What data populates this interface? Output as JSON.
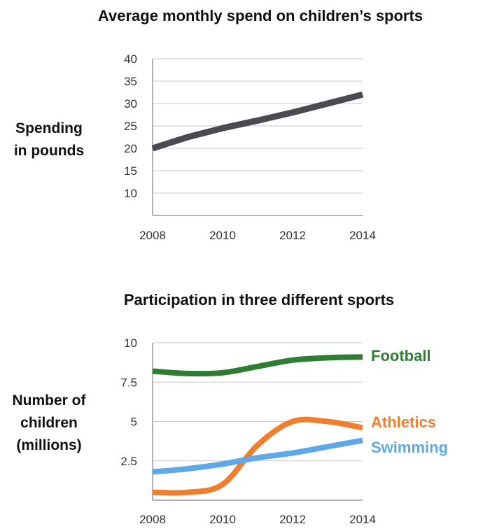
{
  "chart_data": [
    {
      "type": "line",
      "title": "Average monthly spend on children’s sports",
      "ylabel": [
        "Spending",
        "in pounds"
      ],
      "xlabel": "",
      "x": [
        2008,
        2009,
        2010,
        2011,
        2012,
        2013,
        2014
      ],
      "xticks": [
        "2008",
        "2010",
        "2012",
        "2014"
      ],
      "yticks": [
        "40",
        "35",
        "30",
        "25",
        "20",
        "15",
        "10"
      ],
      "ylim": [
        5,
        40
      ],
      "grid": true,
      "series": [
        {
          "values": [
            20,
            22.5,
            24.5,
            26.2,
            28,
            30,
            32
          ],
          "color": "#4a4a50"
        }
      ]
    },
    {
      "type": "line",
      "title": "Participation in three different sports",
      "ylabel": [
        "Number of",
        "children",
        "(millions)"
      ],
      "xlabel": "",
      "x": [
        2008,
        2009,
        2010,
        2011,
        2012,
        2013,
        2014
      ],
      "xticks": [
        "2008",
        "2010",
        "2012",
        "2014"
      ],
      "yticks": [
        "10",
        "7.5",
        "5",
        "2.5"
      ],
      "ylim": [
        0,
        10
      ],
      "grid": true,
      "legend_placement": "right (end-of-line labels)",
      "series": [
        {
          "name": "Football",
          "values": [
            8.2,
            8.05,
            8.1,
            8.5,
            8.9,
            9.05,
            9.1
          ],
          "color": "#2e7d32"
        },
        {
          "name": "Athletics",
          "values": [
            0.5,
            0.5,
            1.0,
            3.5,
            5.0,
            5.0,
            4.6
          ],
          "color": "#ef7f2f"
        },
        {
          "name": "Swimming",
          "values": [
            1.8,
            2.0,
            2.3,
            2.7,
            3.0,
            3.4,
            3.8
          ],
          "color": "#5fa8e8"
        }
      ]
    }
  ]
}
